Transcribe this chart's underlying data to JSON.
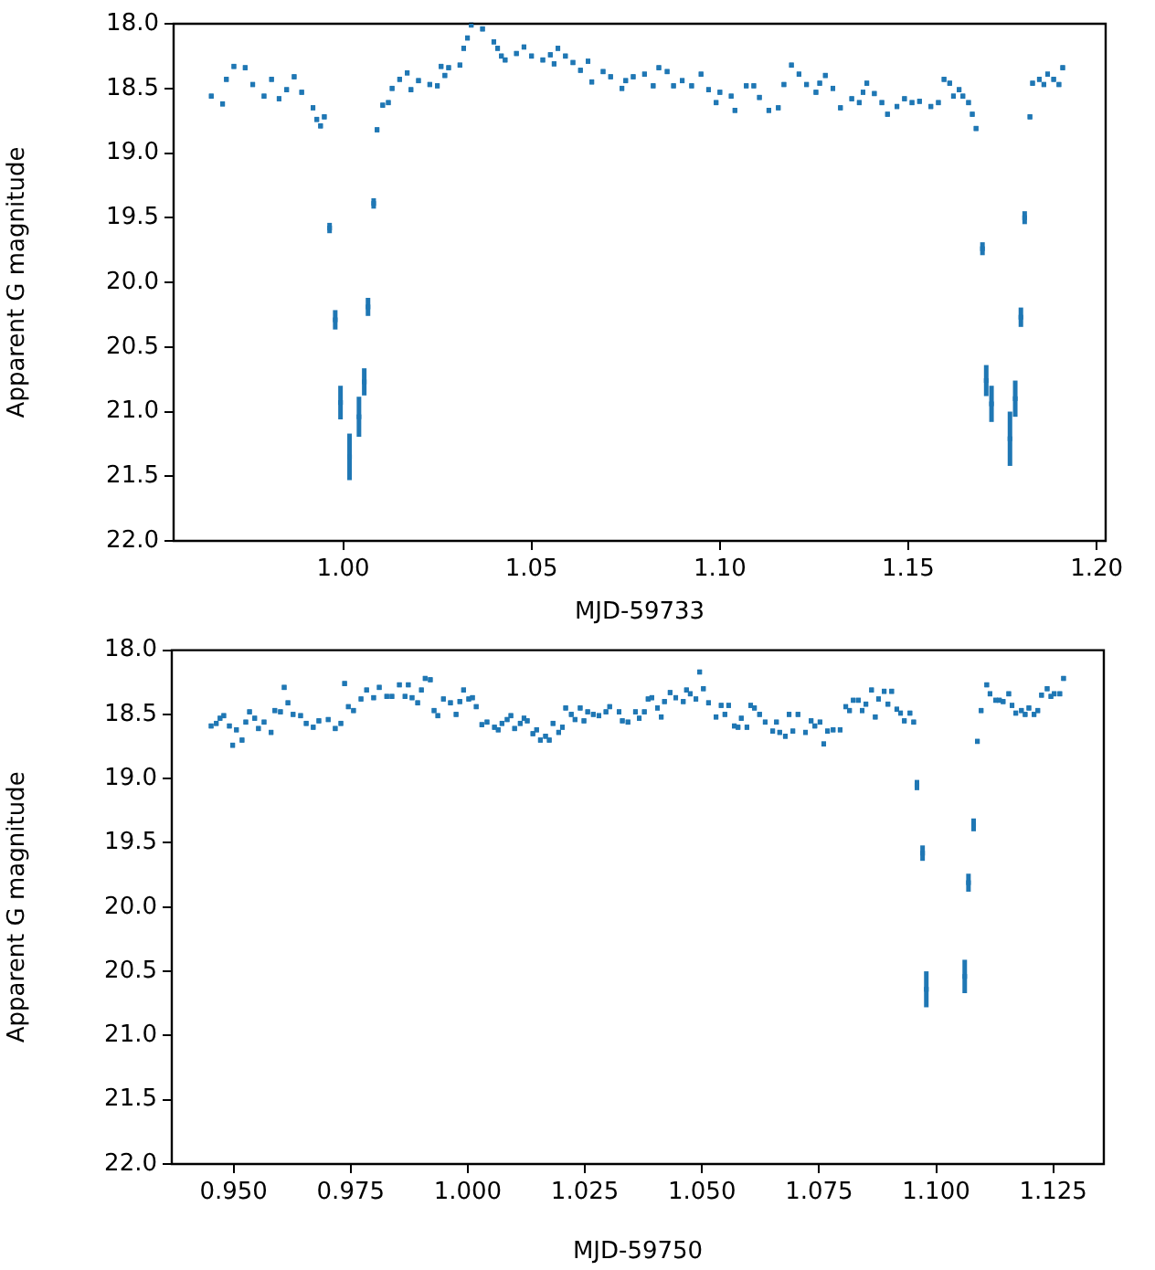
{
  "chart_data": [
    {
      "type": "scatter",
      "xlabel": "MJD-59733",
      "ylabel": "Apparent G magnitude",
      "marker": "square",
      "grid": false,
      "legend": false,
      "xlim": [
        0.955,
        1.2024
      ],
      "xticks": [
        {
          "value": 1.0,
          "label": "1.00"
        },
        {
          "value": 1.05,
          "label": "1.05"
        },
        {
          "value": 1.1,
          "label": "1.10"
        },
        {
          "value": 1.15,
          "label": "1.15"
        },
        {
          "value": 1.2,
          "label": "1.20"
        }
      ],
      "ylim": [
        22.0,
        18.0
      ],
      "yticks": [
        {
          "value": 18,
          "label": "18.0"
        },
        {
          "value": 18.5,
          "label": "18.5"
        },
        {
          "value": 19,
          "label": "19.0"
        },
        {
          "value": 19.5,
          "label": "19.5"
        },
        {
          "value": 20,
          "label": "20.0"
        },
        {
          "value": 20.5,
          "label": "20.5"
        },
        {
          "value": 21,
          "label": "21.0"
        },
        {
          "value": 21.5,
          "label": "21.5"
        },
        {
          "value": 22,
          "label": "22.0"
        }
      ],
      "series": [
        {
          "color": "#1f77b4",
          "x": [
            0.965,
            0.968,
            0.969,
            0.971,
            0.974,
            0.976,
            0.979,
            0.981,
            0.983,
            0.985,
            0.987,
            0.989,
            0.992,
            0.993,
            0.994,
            0.995,
            0.9964,
            0.9979,
            0.9993,
            1.0017,
            1.0042,
            1.0056,
            1.0066,
            1.0081,
            1.009,
            1.0105,
            1.012,
            1.013,
            1.015,
            1.017,
            1.018,
            1.02,
            1.023,
            1.025,
            1.026,
            1.027,
            1.028,
            1.031,
            1.032,
            1.033,
            1.034,
            1.037,
            1.04,
            1.041,
            1.042,
            1.043,
            1.046,
            1.048,
            1.05,
            1.053,
            1.055,
            1.056,
            1.057,
            1.059,
            1.061,
            1.063,
            1.065,
            1.066,
            1.069,
            1.071,
            1.074,
            1.075,
            1.077,
            1.08,
            1.0823,
            1.0838,
            1.086,
            1.0877,
            1.09,
            1.0925,
            1.095,
            1.097,
            1.099,
            1.1,
            1.103,
            1.104,
            1.107,
            1.109,
            1.1105,
            1.113,
            1.1155,
            1.117,
            1.119,
            1.121,
            1.123,
            1.1255,
            1.1265,
            1.128,
            1.13,
            1.132,
            1.135,
            1.137,
            1.138,
            1.139,
            1.141,
            1.143,
            1.1445,
            1.147,
            1.149,
            1.151,
            1.153,
            1.156,
            1.158,
            1.1595,
            1.161,
            1.162,
            1.1635,
            1.1645,
            1.166,
            1.167,
            1.168,
            1.1697,
            1.1707,
            1.1721,
            1.177,
            1.1784,
            1.1799,
            1.1809,
            1.1823,
            1.183,
            1.1848,
            1.186,
            1.187,
            1.1886,
            1.19,
            1.191
          ],
          "values": [
            18.56,
            18.62,
            18.43,
            18.33,
            18.34,
            18.47,
            18.56,
            18.43,
            18.58,
            18.51,
            18.41,
            18.53,
            18.65,
            18.74,
            18.79,
            18.72,
            19.58,
            20.29,
            20.93,
            21.35,
            21.04,
            20.77,
            20.19,
            19.39,
            18.82,
            18.63,
            18.61,
            18.5,
            18.43,
            18.38,
            18.51,
            18.44,
            18.47,
            18.48,
            18.33,
            18.4,
            18.34,
            18.32,
            18.19,
            18.11,
            18.01,
            18.04,
            18.14,
            18.19,
            18.25,
            18.28,
            18.23,
            18.18,
            18.25,
            18.28,
            18.24,
            18.31,
            18.19,
            18.25,
            18.3,
            18.36,
            18.29,
            18.45,
            18.37,
            18.41,
            18.5,
            18.44,
            18.41,
            18.39,
            18.48,
            18.34,
            18.37,
            18.48,
            18.44,
            18.48,
            18.39,
            18.51,
            18.61,
            18.53,
            18.56,
            18.67,
            18.48,
            18.48,
            18.57,
            18.67,
            18.65,
            18.47,
            18.32,
            18.39,
            18.47,
            18.53,
            18.46,
            18.4,
            18.5,
            18.65,
            18.58,
            18.61,
            18.53,
            18.46,
            18.54,
            18.61,
            18.7,
            18.64,
            18.58,
            18.61,
            18.6,
            18.64,
            18.61,
            18.43,
            18.46,
            18.56,
            18.51,
            18.56,
            18.61,
            18.7,
            18.81,
            19.74,
            20.76,
            20.94,
            21.21,
            20.9,
            20.27,
            19.5,
            18.72,
            18.46,
            18.43,
            18.47,
            18.39,
            18.43,
            18.47,
            18.34
          ],
          "errors": [
            0.02,
            0.02,
            0.02,
            0.02,
            0.02,
            0.02,
            0.02,
            0.02,
            0.02,
            0.02,
            0.02,
            0.02,
            0.02,
            0.02,
            0.02,
            0.02,
            0.04,
            0.075,
            0.13,
            0.18,
            0.155,
            0.105,
            0.07,
            0.04,
            0.02,
            0.02,
            0.02,
            0.02,
            0.02,
            0.02,
            0.02,
            0.02,
            0.02,
            0.02,
            0.02,
            0.02,
            0.02,
            0.02,
            0.02,
            0.02,
            0.02,
            0.02,
            0.02,
            0.02,
            0.02,
            0.02,
            0.02,
            0.02,
            0.02,
            0.02,
            0.02,
            0.02,
            0.02,
            0.02,
            0.02,
            0.02,
            0.02,
            0.02,
            0.02,
            0.02,
            0.02,
            0.02,
            0.02,
            0.02,
            0.02,
            0.02,
            0.02,
            0.02,
            0.02,
            0.02,
            0.02,
            0.02,
            0.02,
            0.02,
            0.02,
            0.02,
            0.02,
            0.02,
            0.02,
            0.02,
            0.02,
            0.02,
            0.02,
            0.02,
            0.02,
            0.02,
            0.02,
            0.02,
            0.02,
            0.02,
            0.02,
            0.02,
            0.02,
            0.02,
            0.02,
            0.02,
            0.02,
            0.02,
            0.02,
            0.02,
            0.02,
            0.02,
            0.02,
            0.02,
            0.02,
            0.02,
            0.02,
            0.02,
            0.02,
            0.02,
            0.02,
            0.05,
            0.12,
            0.14,
            0.21,
            0.14,
            0.075,
            0.05,
            0.02,
            0.02,
            0.02,
            0.02,
            0.02,
            0.02,
            0.02,
            0.02
          ]
        }
      ]
    },
    {
      "type": "scatter",
      "xlabel": "MJD-59750",
      "ylabel": "Apparent G magnitude",
      "marker": "square",
      "grid": false,
      "legend": false,
      "xlim": [
        0.9368,
        1.1358
      ],
      "xticks": [
        {
          "value": 0.95,
          "label": "0.950"
        },
        {
          "value": 0.975,
          "label": "0.975"
        },
        {
          "value": 1.0,
          "label": "1.000"
        },
        {
          "value": 1.025,
          "label": "1.025"
        },
        {
          "value": 1.05,
          "label": "1.050"
        },
        {
          "value": 1.075,
          "label": "1.075"
        },
        {
          "value": 1.1,
          "label": "1.100"
        },
        {
          "value": 1.125,
          "label": "1.125"
        }
      ],
      "ylim": [
        22.0,
        18.0
      ],
      "yticks": [
        {
          "value": 18,
          "label": "18.0"
        },
        {
          "value": 18.5,
          "label": "18.5"
        },
        {
          "value": 19,
          "label": "19.0"
        },
        {
          "value": 19.5,
          "label": "19.5"
        },
        {
          "value": 20,
          "label": "20.0"
        },
        {
          "value": 20.5,
          "label": "20.5"
        },
        {
          "value": 21,
          "label": "21.0"
        },
        {
          "value": 21.5,
          "label": "21.5"
        },
        {
          "value": 22,
          "label": "22.0"
        }
      ],
      "series": [
        {
          "color": "#1f77b4",
          "x": [
            0.9452,
            0.9463,
            0.9471,
            0.9479,
            0.9491,
            0.9498,
            0.9506,
            0.9518,
            0.9526,
            0.9534,
            0.9545,
            0.9553,
            0.9565,
            0.958,
            0.9588,
            0.96,
            0.9608,
            0.9616,
            0.9627,
            0.9643,
            0.9655,
            0.967,
            0.9682,
            0.9702,
            0.9717,
            0.9729,
            0.9737,
            0.9745,
            0.9756,
            0.9772,
            0.9784,
            0.9799,
            0.9811,
            0.9827,
            0.9838,
            0.9854,
            0.9866,
            0.9873,
            0.9881,
            0.9893,
            0.9901,
            0.9909,
            0.992,
            0.9928,
            0.9936,
            0.9948,
            0.9963,
            0.9975,
            0.9983,
            0.9991,
            1.0002,
            1.001,
            1.0018,
            1.003,
            1.0041,
            1.0057,
            1.0065,
            1.0073,
            1.0084,
            1.0092,
            1.01,
            1.0112,
            1.012,
            1.0127,
            1.0139,
            1.0147,
            1.0155,
            1.0166,
            1.0174,
            1.0182,
            1.0194,
            1.0202,
            1.0209,
            1.0221,
            1.0229,
            1.024,
            1.0248,
            1.0256,
            1.0268,
            1.028,
            1.0295,
            1.0303,
            1.0323,
            1.033,
            1.0342,
            1.0358,
            1.0366,
            1.0377,
            1.0385,
            1.0393,
            1.0405,
            1.0413,
            1.042,
            1.0432,
            1.0444,
            1.046,
            1.0467,
            1.0475,
            1.0487,
            1.0495,
            1.0503,
            1.0514,
            1.053,
            1.0541,
            1.0549,
            1.0557,
            1.0569,
            1.0577,
            1.0584,
            1.0596,
            1.0604,
            1.0612,
            1.0623,
            1.0635,
            1.0651,
            1.0659,
            1.0666,
            1.0678,
            1.0686,
            1.0694,
            1.0705,
            1.0721,
            1.0733,
            1.0741,
            1.0752,
            1.076,
            1.0768,
            1.078,
            1.0795,
            1.0807,
            1.0815,
            1.0823,
            1.0834,
            1.0842,
            1.085,
            1.0862,
            1.087,
            1.0877,
            1.0889,
            1.0897,
            1.0905,
            1.0916,
            1.0924,
            1.0932,
            1.0944,
            1.0952,
            1.0959,
            1.0971,
            1.0979,
            1.1061,
            1.1069,
            1.108,
            1.1088,
            1.1096,
            1.1108,
            1.1115,
            1.1127,
            1.1135,
            1.1143,
            1.1155,
            1.1162,
            1.117,
            1.1182,
            1.119,
            1.1198,
            1.1209,
            1.1217,
            1.1225,
            1.1237,
            1.1245,
            1.1252,
            1.1264,
            1.1272
          ],
          "values": [
            18.59,
            18.57,
            18.53,
            18.51,
            18.59,
            18.74,
            18.62,
            18.7,
            18.56,
            18.48,
            18.53,
            18.61,
            18.56,
            18.64,
            18.47,
            18.48,
            18.29,
            18.41,
            18.5,
            18.51,
            18.57,
            18.6,
            18.55,
            18.54,
            18.61,
            18.57,
            18.26,
            18.44,
            18.47,
            18.38,
            18.31,
            18.37,
            18.29,
            18.36,
            18.36,
            18.27,
            18.36,
            18.27,
            18.37,
            18.41,
            18.31,
            18.22,
            18.23,
            18.47,
            18.51,
            18.38,
            18.41,
            18.5,
            18.4,
            18.31,
            18.38,
            18.37,
            18.44,
            18.58,
            18.56,
            18.6,
            18.62,
            18.57,
            18.54,
            18.51,
            18.61,
            18.57,
            18.53,
            18.55,
            18.65,
            18.62,
            18.7,
            18.67,
            18.7,
            18.57,
            18.64,
            18.6,
            18.45,
            18.5,
            18.54,
            18.45,
            18.55,
            18.48,
            18.5,
            18.51,
            18.48,
            18.44,
            18.48,
            18.55,
            18.56,
            18.48,
            18.53,
            18.48,
            18.38,
            18.37,
            18.45,
            18.52,
            18.4,
            18.33,
            18.37,
            18.4,
            18.31,
            18.34,
            18.38,
            18.17,
            18.3,
            18.41,
            18.52,
            18.43,
            18.5,
            18.43,
            18.59,
            18.6,
            18.53,
            18.6,
            18.43,
            18.45,
            18.5,
            18.56,
            18.63,
            18.56,
            18.64,
            18.67,
            18.5,
            18.63,
            18.5,
            18.64,
            18.55,
            18.59,
            18.56,
            18.73,
            18.63,
            18.62,
            18.62,
            18.44,
            18.47,
            18.39,
            18.39,
            18.47,
            18.42,
            18.31,
            18.52,
            18.38,
            18.32,
            18.42,
            18.32,
            18.46,
            18.49,
            18.55,
            18.49,
            18.56,
            19.05,
            19.58,
            20.64,
            20.54,
            19.81,
            19.36,
            18.71,
            18.47,
            18.27,
            18.34,
            18.39,
            18.39,
            18.4,
            18.34,
            18.43,
            18.49,
            18.47,
            18.5,
            18.45,
            18.5,
            18.47,
            18.35,
            18.3,
            18.36,
            18.34,
            18.34,
            18.22
          ],
          "errors": [
            0.02,
            0.02,
            0.02,
            0.02,
            0.02,
            0.02,
            0.02,
            0.02,
            0.02,
            0.02,
            0.02,
            0.02,
            0.02,
            0.02,
            0.02,
            0.02,
            0.02,
            0.02,
            0.02,
            0.02,
            0.02,
            0.02,
            0.02,
            0.02,
            0.02,
            0.02,
            0.02,
            0.02,
            0.02,
            0.02,
            0.02,
            0.02,
            0.02,
            0.02,
            0.02,
            0.02,
            0.02,
            0.02,
            0.02,
            0.02,
            0.02,
            0.02,
            0.02,
            0.02,
            0.02,
            0.02,
            0.02,
            0.02,
            0.02,
            0.02,
            0.02,
            0.02,
            0.02,
            0.02,
            0.02,
            0.02,
            0.02,
            0.02,
            0.02,
            0.02,
            0.02,
            0.02,
            0.02,
            0.02,
            0.02,
            0.02,
            0.02,
            0.02,
            0.02,
            0.02,
            0.02,
            0.02,
            0.02,
            0.02,
            0.02,
            0.02,
            0.02,
            0.02,
            0.02,
            0.02,
            0.02,
            0.02,
            0.02,
            0.02,
            0.02,
            0.02,
            0.02,
            0.02,
            0.02,
            0.02,
            0.02,
            0.02,
            0.02,
            0.02,
            0.02,
            0.02,
            0.02,
            0.02,
            0.02,
            0.02,
            0.02,
            0.02,
            0.02,
            0.02,
            0.02,
            0.02,
            0.02,
            0.02,
            0.02,
            0.02,
            0.02,
            0.02,
            0.02,
            0.02,
            0.02,
            0.02,
            0.02,
            0.02,
            0.02,
            0.02,
            0.02,
            0.02,
            0.02,
            0.02,
            0.02,
            0.02,
            0.02,
            0.02,
            0.02,
            0.02,
            0.02,
            0.02,
            0.02,
            0.02,
            0.02,
            0.02,
            0.02,
            0.02,
            0.02,
            0.02,
            0.02,
            0.02,
            0.02,
            0.02,
            0.02,
            0.02,
            0.04,
            0.06,
            0.14,
            0.13,
            0.07,
            0.05,
            0.02,
            0.02,
            0.02,
            0.02,
            0.02,
            0.02,
            0.02,
            0.02,
            0.02,
            0.02,
            0.02,
            0.02,
            0.02,
            0.02,
            0.02,
            0.02,
            0.02,
            0.02,
            0.02,
            0.02,
            0.02
          ]
        }
      ]
    }
  ]
}
